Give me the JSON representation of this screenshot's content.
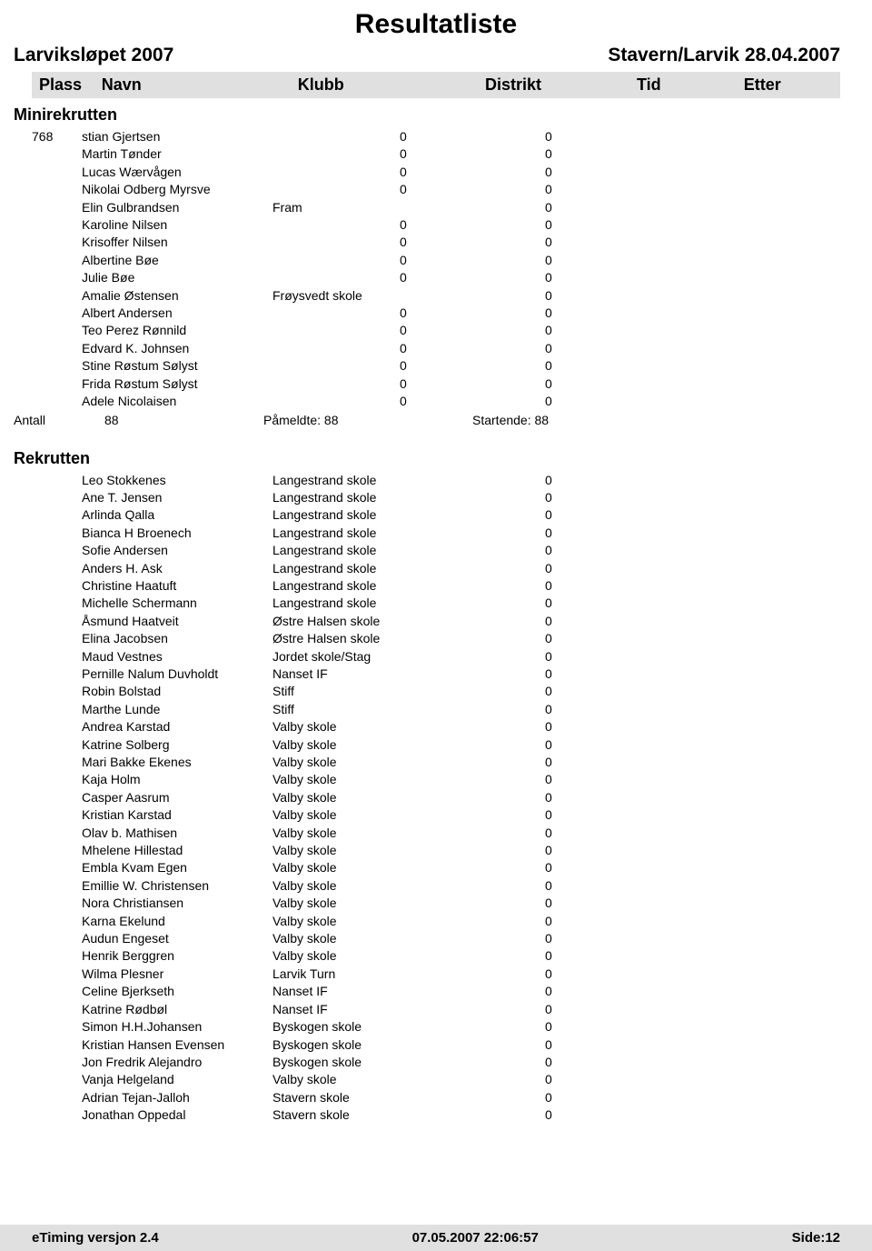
{
  "title": "Resultatliste",
  "event": "Larviksløpet 2007",
  "place_date": "Stavern/Larvik  28.04.2007",
  "headers": {
    "plass": "Plass",
    "navn": "Navn",
    "klubb": "Klubb",
    "distrikt": "Distrikt",
    "tid": "Tid",
    "etter": "Etter"
  },
  "section1": {
    "name": "Minirekrutten",
    "leading_plass": "768",
    "rows": [
      {
        "navn": "stian Gjertsen",
        "klubb": "",
        "tid": "0",
        "etter": "0"
      },
      {
        "navn": "Martin Tønder",
        "klubb": "",
        "tid": "0",
        "etter": "0"
      },
      {
        "navn": "Lucas Wærvågen",
        "klubb": "",
        "tid": "0",
        "etter": "0"
      },
      {
        "navn": "Nikolai Odberg Myrsve",
        "klubb": "",
        "tid": "0",
        "etter": "0"
      },
      {
        "navn": "Elin Gulbrandsen",
        "klubb": "Fram",
        "tid": "",
        "etter": "0"
      },
      {
        "navn": "Karoline Nilsen",
        "klubb": "",
        "tid": "0",
        "etter": "0"
      },
      {
        "navn": "Krisoffer Nilsen",
        "klubb": "",
        "tid": "0",
        "etter": "0"
      },
      {
        "navn": "Albertine Bøe",
        "klubb": "",
        "tid": "0",
        "etter": "0"
      },
      {
        "navn": "Julie Bøe",
        "klubb": "",
        "tid": "0",
        "etter": "0"
      },
      {
        "navn": "Amalie Østensen",
        "klubb": "Frøysvedt skole",
        "tid": "",
        "etter": "0"
      },
      {
        "navn": "Albert Andersen",
        "klubb": "",
        "tid": "0",
        "etter": "0"
      },
      {
        "navn": "Teo Perez Rønnild",
        "klubb": "",
        "tid": "0",
        "etter": "0"
      },
      {
        "navn": "Edvard K. Johnsen",
        "klubb": "",
        "tid": "0",
        "etter": "0"
      },
      {
        "navn": "Stine Røstum Sølyst",
        "klubb": "",
        "tid": "0",
        "etter": "0"
      },
      {
        "navn": "Frida Røstum Sølyst",
        "klubb": "",
        "tid": "0",
        "etter": "0"
      },
      {
        "navn": "Adele Nicolaisen",
        "klubb": "",
        "tid": "0",
        "etter": "0"
      }
    ],
    "summary": {
      "antall_label": "Antall",
      "antall": "88",
      "pameldte": "Påmeldte:  88",
      "startende": "Startende: 88"
    }
  },
  "section2": {
    "name": "Rekrutten",
    "rows": [
      {
        "navn": "Leo Stokkenes",
        "klubb": "Langestrand skole",
        "etter": "0"
      },
      {
        "navn": "Ane T. Jensen",
        "klubb": "Langestrand skole",
        "etter": "0"
      },
      {
        "navn": "Arlinda Qalla",
        "klubb": "Langestrand skole",
        "etter": "0"
      },
      {
        "navn": "Bianca H Broenech",
        "klubb": "Langestrand skole",
        "etter": "0"
      },
      {
        "navn": "Sofie Andersen",
        "klubb": "Langestrand skole",
        "etter": "0"
      },
      {
        "navn": "Anders H. Ask",
        "klubb": "Langestrand skole",
        "etter": "0"
      },
      {
        "navn": "Christine Haatuft",
        "klubb": "Langestrand skole",
        "etter": "0"
      },
      {
        "navn": "Michelle Schermann",
        "klubb": "Langestrand skole",
        "etter": "0"
      },
      {
        "navn": "Åsmund Haatveit",
        "klubb": "Østre Halsen skole",
        "etter": "0"
      },
      {
        "navn": "Elina Jacobsen",
        "klubb": "Østre Halsen skole",
        "etter": "0"
      },
      {
        "navn": "Maud Vestnes",
        "klubb": "Jordet skole/Stag",
        "etter": "0"
      },
      {
        "navn": "Pernille Nalum Duvholdt",
        "klubb": "Nanset IF",
        "etter": "0"
      },
      {
        "navn": "Robin Bolstad",
        "klubb": "Stiff",
        "etter": "0"
      },
      {
        "navn": "Marthe Lunde",
        "klubb": "Stiff",
        "etter": "0"
      },
      {
        "navn": "Andrea Karstad",
        "klubb": "Valby skole",
        "etter": "0"
      },
      {
        "navn": "Katrine Solberg",
        "klubb": "Valby skole",
        "etter": "0"
      },
      {
        "navn": "Mari Bakke Ekenes",
        "klubb": "Valby skole",
        "etter": "0"
      },
      {
        "navn": "Kaja Holm",
        "klubb": "Valby skole",
        "etter": "0"
      },
      {
        "navn": "Casper Aasrum",
        "klubb": "Valby skole",
        "etter": "0"
      },
      {
        "navn": "Kristian Karstad",
        "klubb": "Valby skole",
        "etter": "0"
      },
      {
        "navn": "Olav b. Mathisen",
        "klubb": "Valby skole",
        "etter": "0"
      },
      {
        "navn": "Mhelene Hillestad",
        "klubb": "Valby skole",
        "etter": "0"
      },
      {
        "navn": "Embla Kvam Egen",
        "klubb": "Valby skole",
        "etter": "0"
      },
      {
        "navn": "Emillie W. Christensen",
        "klubb": "Valby skole",
        "etter": "0"
      },
      {
        "navn": "Nora Christiansen",
        "klubb": "Valby skole",
        "etter": "0"
      },
      {
        "navn": "Karna Ekelund",
        "klubb": "Valby skole",
        "etter": "0"
      },
      {
        "navn": "Audun Engeset",
        "klubb": "Valby skole",
        "etter": "0"
      },
      {
        "navn": "Henrik Berggren",
        "klubb": "Valby skole",
        "etter": "0"
      },
      {
        "navn": "Wilma Plesner",
        "klubb": "Larvik Turn",
        "etter": "0"
      },
      {
        "navn": "Celine Bjerkseth",
        "klubb": "Nanset IF",
        "etter": "0"
      },
      {
        "navn": "Katrine Rødbøl",
        "klubb": "Nanset IF",
        "etter": "0"
      },
      {
        "navn": "Simon H.H.Johansen",
        "klubb": "Byskogen skole",
        "etter": "0"
      },
      {
        "navn": "Kristian Hansen Evensen",
        "klubb": "Byskogen skole",
        "etter": "0"
      },
      {
        "navn": "Jon Fredrik Alejandro",
        "klubb": "Byskogen skole",
        "etter": "0"
      },
      {
        "navn": "Vanja Helgeland",
        "klubb": "Valby skole",
        "etter": "0"
      },
      {
        "navn": "Adrian Tejan-Jalloh",
        "klubb": "Stavern skole",
        "etter": "0"
      },
      {
        "navn": "Jonathan Oppedal",
        "klubb": "Stavern skole",
        "etter": "0"
      }
    ]
  },
  "footer": {
    "left": "eTiming versjon 2.4",
    "center": "07.05.2007 22:06:57",
    "right": "Side:12"
  }
}
